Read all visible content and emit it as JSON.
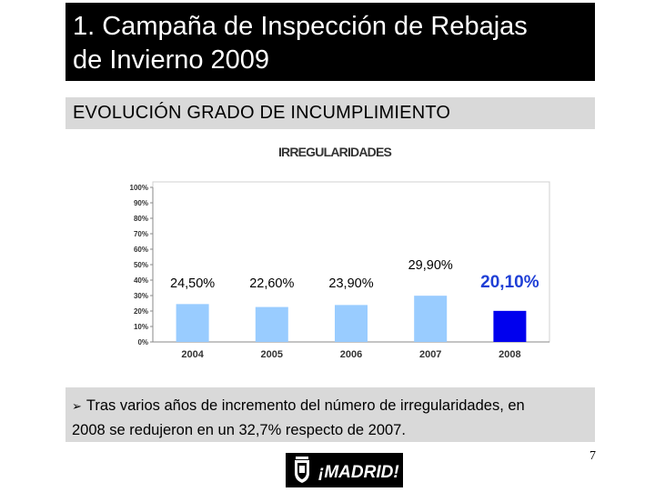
{
  "slide": {
    "title_line1": "1. Campaña de Inspección de Rebajas",
    "title_line2": "de Invierno 2009",
    "subtitle": "EVOLUCIÓN GRADO DE INCUMPLIMIENTO",
    "note_line1": "Tras varios años de incremento del número de irregularidades, en",
    "note_line2": "2008 se redujeron en un 32,7% respecto de 2007.",
    "page_number": "7",
    "logo_text": "¡MADRID!"
  },
  "colors": {
    "bar_default": "#99ccff",
    "bar_highlight": "#0000ee",
    "highlight_label": "#1f3fd6",
    "logo_accent": "#e8322e"
  },
  "chart_data": {
    "type": "bar",
    "title": "IRREGULARIDADES",
    "categories": [
      "2004",
      "2005",
      "2006",
      "2007",
      "2008"
    ],
    "values": [
      24.5,
      22.6,
      23.9,
      29.9,
      20.1
    ],
    "data_labels": [
      "24,50%",
      "22,60%",
      "23,90%",
      "29,90%",
      "20,10%"
    ],
    "highlight_index": 4,
    "y_ticks": [
      "0%",
      "10%",
      "20%",
      "30%",
      "40%",
      "50%",
      "60%",
      "70%",
      "80%",
      "90%",
      "100%"
    ],
    "ylim": [
      0,
      100
    ],
    "grid": false,
    "xlabel": "",
    "ylabel": ""
  }
}
